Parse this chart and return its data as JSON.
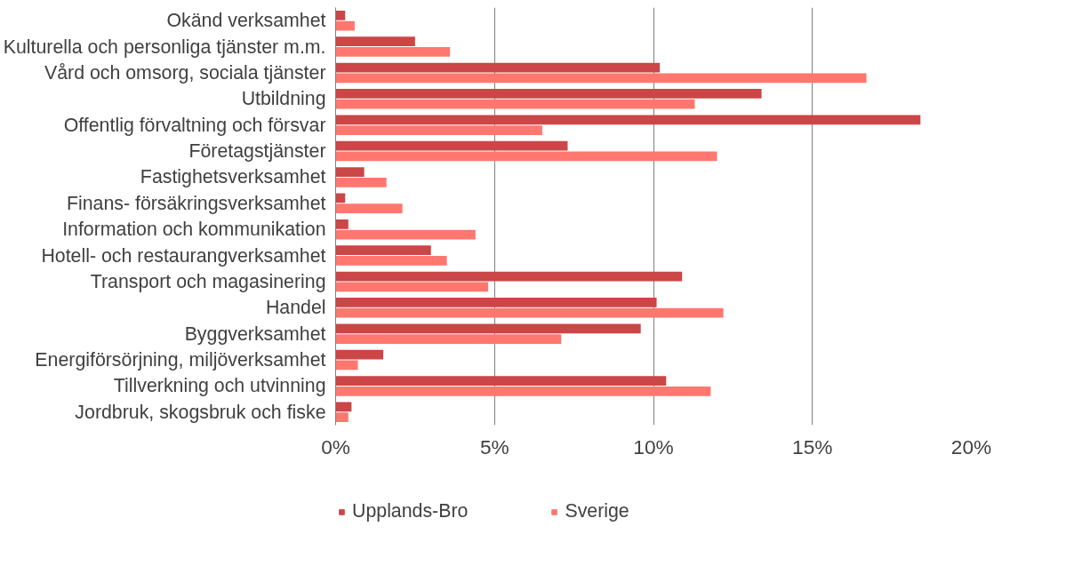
{
  "chart_data": {
    "type": "bar",
    "orientation": "horizontal",
    "categories": [
      "Okänd verksamhet",
      "Kulturella och personliga tjänster m.m.",
      "Vård och omsorg, sociala tjänster",
      "Utbildning",
      "Offentlig förvaltning och försvar",
      "Företagstjänster",
      "Fastighetsverksamhet",
      "Finans- försäkringsverksamhet",
      "Information och kommunikation",
      "Hotell- och restaurangverksamhet",
      "Transport och magasinering",
      "Handel",
      "Byggverksamhet",
      "Energiförsörjning, miljöverksamhet",
      "Tillverkning och utvinning",
      "Jordbruk, skogsbruk och fiske"
    ],
    "series": [
      {
        "name": "Upplands-Bro",
        "color": "#cb4647",
        "values": [
          0.3,
          2.5,
          10.2,
          13.4,
          18.4,
          7.3,
          0.9,
          0.3,
          0.4,
          3.0,
          10.9,
          10.1,
          9.6,
          1.5,
          10.4,
          0.5
        ]
      },
      {
        "name": "Sverige",
        "color": "#ff776e",
        "values": [
          0.6,
          3.6,
          16.7,
          11.3,
          6.5,
          12.0,
          1.6,
          2.1,
          4.4,
          3.5,
          4.8,
          12.2,
          7.1,
          0.7,
          11.8,
          0.4
        ]
      }
    ],
    "xlim": [
      0,
      20
    ],
    "xticks": [
      {
        "value": 0,
        "label": "0%"
      },
      {
        "value": 5,
        "label": "5%"
      },
      {
        "value": 10,
        "label": "10%"
      },
      {
        "value": 15,
        "label": "15%"
      },
      {
        "value": 20,
        "label": "20%"
      }
    ],
    "grid": "x",
    "legend": "bottom left"
  }
}
